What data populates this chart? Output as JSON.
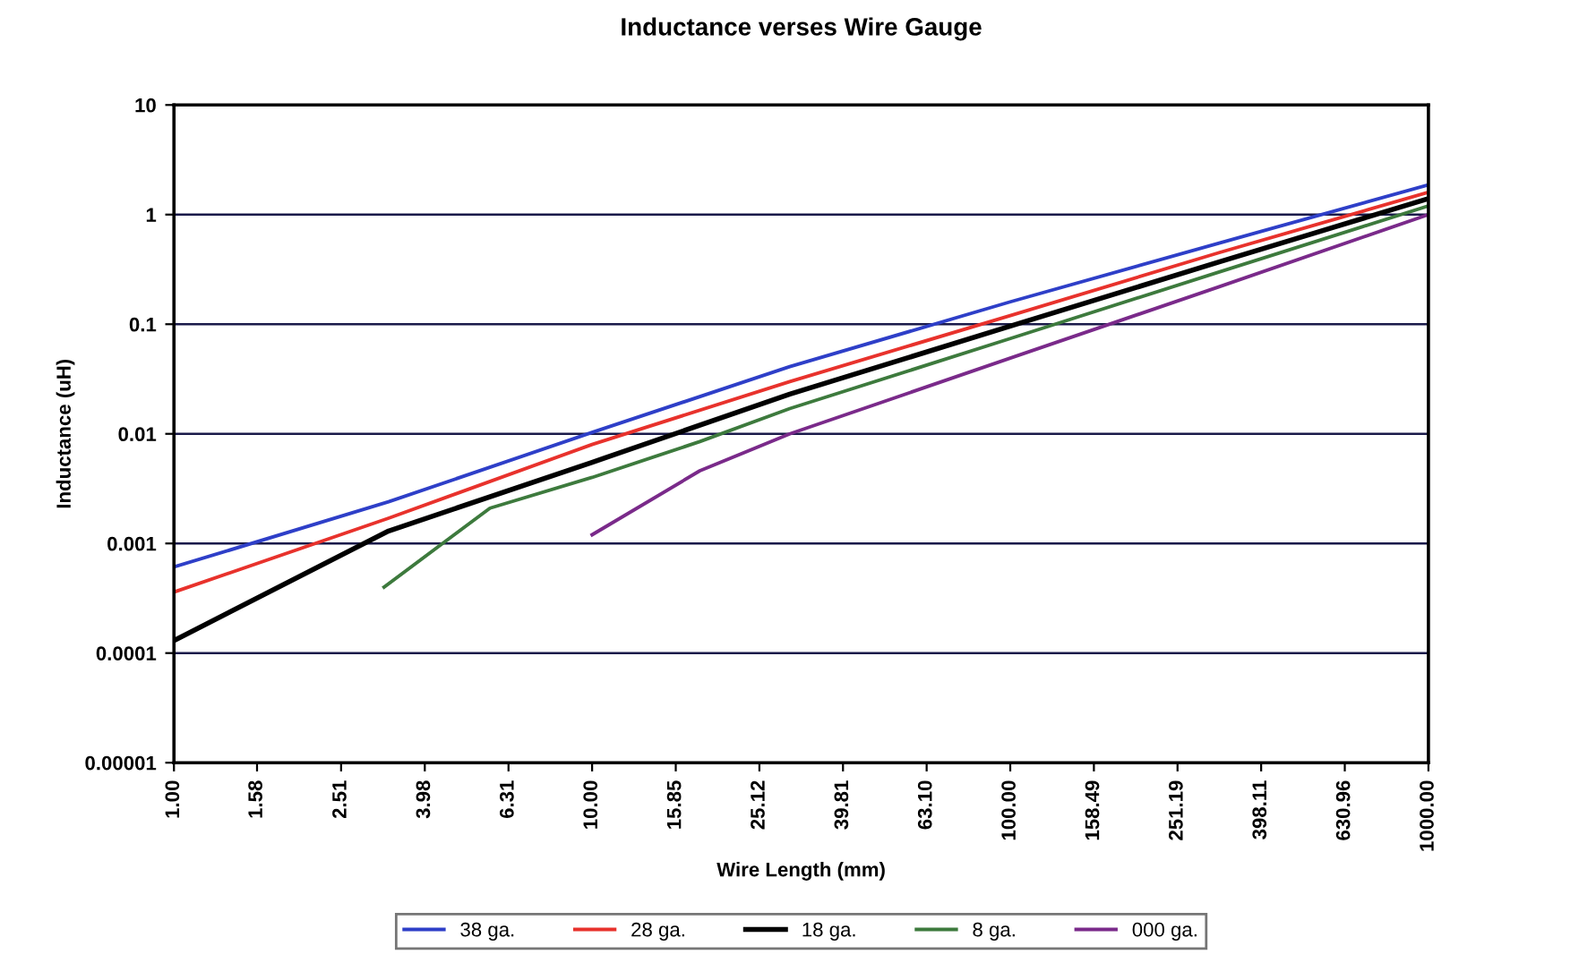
{
  "chart_data": {
    "type": "line",
    "title": "Inductance verses Wire Gauge",
    "xlabel": "Wire Length (mm)",
    "ylabel": "Inductance (uH)",
    "log": "xy",
    "grid": "y",
    "legend": "bottom",
    "marker": "none",
    "line_style": "solid",
    "xlim": [
      1,
      1000
    ],
    "ylim": [
      1e-05,
      10
    ],
    "xticks": [
      {
        "value": 1,
        "label": "1.00"
      },
      {
        "value": 1.58,
        "label": "1.58"
      },
      {
        "value": 2.51,
        "label": "2.51"
      },
      {
        "value": 3.98,
        "label": "3.98"
      },
      {
        "value": 6.31,
        "label": "6.31"
      },
      {
        "value": 10,
        "label": "10.00"
      },
      {
        "value": 15.85,
        "label": "15.85"
      },
      {
        "value": 25.12,
        "label": "25.12"
      },
      {
        "value": 39.81,
        "label": "39.81"
      },
      {
        "value": 63.1,
        "label": "63.10"
      },
      {
        "value": 100,
        "label": "100.00"
      },
      {
        "value": 158.49,
        "label": "158.49"
      },
      {
        "value": 251.19,
        "label": "251.19"
      },
      {
        "value": 398.11,
        "label": "398.11"
      },
      {
        "value": 630.96,
        "label": "630.96"
      },
      {
        "value": 1000,
        "label": "1000.00"
      }
    ],
    "yticks": [
      {
        "value": 1e-05,
        "label": "0.00001"
      },
      {
        "value": 0.0001,
        "label": "0.0001"
      },
      {
        "value": 0.001,
        "label": "0.001"
      },
      {
        "value": 0.01,
        "label": "0.01"
      },
      {
        "value": 0.1,
        "label": "0.1"
      },
      {
        "value": 1,
        "label": "1"
      },
      {
        "value": 10,
        "label": "10"
      }
    ],
    "series": [
      {
        "name": "38 ga.",
        "color": "#2e3fc8",
        "x": [
          1,
          3.26,
          10,
          29.7,
          100,
          316,
          1000
        ],
        "values": [
          0.00061,
          0.0024,
          0.0103,
          0.041,
          0.16,
          0.55,
          1.87
        ]
      },
      {
        "name": "28 ga.",
        "color": "#e8322c",
        "x": [
          1,
          3.26,
          10,
          29.7,
          100,
          316,
          1000
        ],
        "values": [
          0.00036,
          0.0017,
          0.008,
          0.03,
          0.12,
          0.45,
          1.6
        ]
      },
      {
        "name": "18 ga.",
        "color": "#000000",
        "x": [
          1,
          3.26,
          10,
          29.7,
          100,
          316,
          1000
        ],
        "values": [
          0.00013,
          0.0013,
          0.0055,
          0.023,
          0.096,
          0.37,
          1.4
        ]
      },
      {
        "name": "8 ga.",
        "color": "#3d7a3d",
        "x": [
          3.18,
          5.7,
          10,
          18.1,
          29.7,
          100,
          316,
          1000
        ],
        "values": [
          0.0004,
          0.0021,
          0.004,
          0.0085,
          0.017,
          0.074,
          0.3,
          1.2
        ]
      },
      {
        "name": "000 ga.",
        "color": "#7a2a8a",
        "x": [
          10,
          18.1,
          29.7,
          100,
          316,
          1000
        ],
        "values": [
          0.0012,
          0.0046,
          0.01,
          0.049,
          0.22,
          1.0
        ]
      }
    ]
  }
}
